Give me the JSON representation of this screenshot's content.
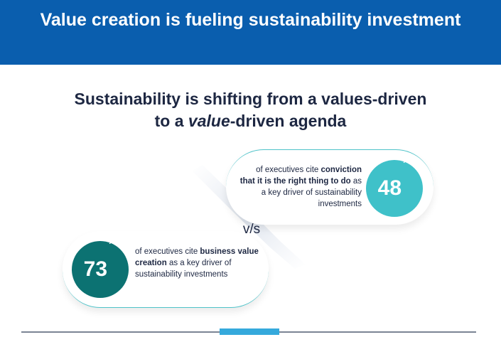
{
  "header": {
    "title": "Value creation is fueling sustainability investment"
  },
  "subtitle": {
    "line1": "Sustainability is shifting from a values-driven",
    "line2_pre": "to a ",
    "line2_em": "value",
    "line2_post": "-driven agenda"
  },
  "comparison_label": "v/s",
  "stats": [
    {
      "number": "48",
      "unit": "%",
      "text_pre": "of executives cite ",
      "text_bold": "conviction that it is the right thing to do",
      "text_post": " as a key driver of sustainability investments",
      "color": "#3fc1c9"
    },
    {
      "number": "73",
      "unit": "%",
      "text_pre": "of executives cite ",
      "text_bold": "business value creation",
      "text_post": " as a key driver of sustainability investments",
      "color": "#0c7272"
    }
  ],
  "colors": {
    "header_bg": "#0a5eae",
    "accent": "#35a9dc",
    "text": "#1d2742"
  }
}
